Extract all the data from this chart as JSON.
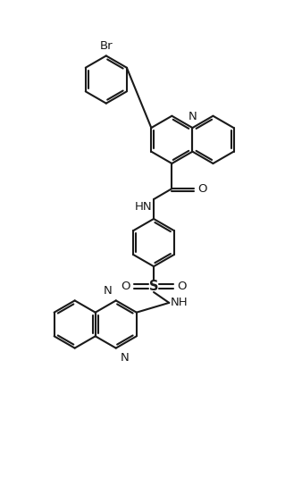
{
  "bg": "#ffffff",
  "lc": "#1a1a1a",
  "lw": 1.5,
  "fs": 9.5,
  "figsize": [
    3.19,
    5.35
  ],
  "dpi": 100,
  "xlim": [
    -0.5,
    9.5
  ],
  "ylim": [
    0,
    17.0
  ]
}
